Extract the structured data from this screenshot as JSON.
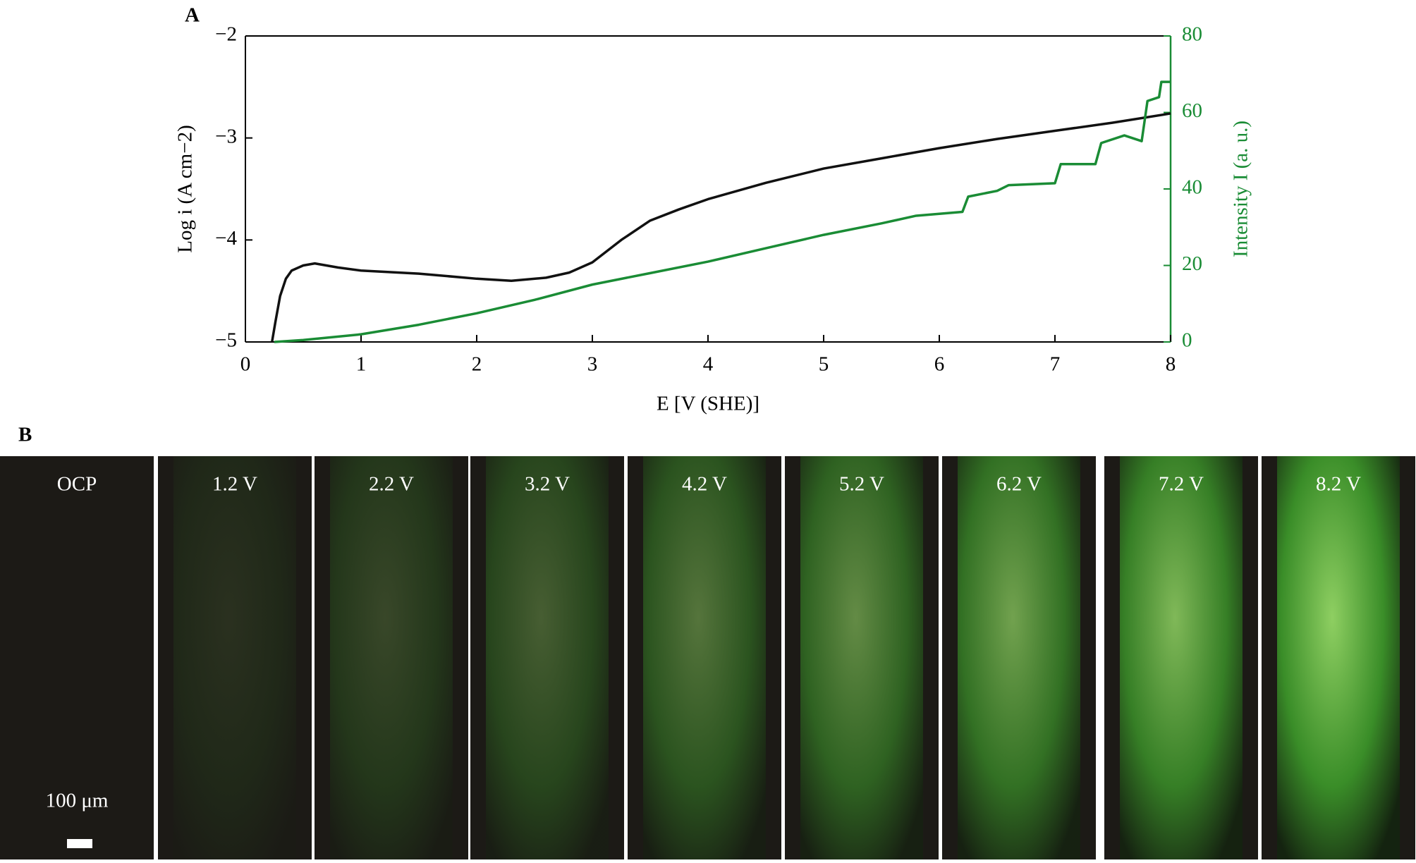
{
  "chart_data": {
    "type": "line",
    "panel_label": "A",
    "xlabel": "E [V (SHE)]",
    "ylabel": "Log i (A cm−2)",
    "y2label": "Intensity I (a. u.)",
    "xlim": [
      0,
      8
    ],
    "xticks": [
      0,
      1,
      2,
      3,
      4,
      5,
      6,
      7,
      8
    ],
    "ylim": [
      -5,
      -2
    ],
    "yticks": [
      {
        "value": -5,
        "label": "−5"
      },
      {
        "value": -4,
        "label": "−4"
      },
      {
        "value": -3,
        "label": "−3"
      },
      {
        "value": -2,
        "label": "−2"
      }
    ],
    "y2lim": [
      0,
      80
    ],
    "y2ticks": [
      0,
      20,
      40,
      60,
      80
    ],
    "y2color": "#1a8c35",
    "series": [
      {
        "color": "#111111",
        "x": [
          0.23,
          0.26,
          0.3,
          0.35,
          0.4,
          0.5,
          0.6,
          0.8,
          1.0,
          1.5,
          2.0,
          2.3,
          2.6,
          2.8,
          3.0,
          3.25,
          3.5,
          3.75,
          4.0,
          4.5,
          5.0,
          5.5,
          6.0,
          6.5,
          7.0,
          7.5,
          8.0
        ],
        "values": [
          -5.0,
          -4.8,
          -4.55,
          -4.38,
          -4.3,
          -4.25,
          -4.23,
          -4.27,
          -4.3,
          -4.33,
          -4.38,
          -4.4,
          -4.37,
          -4.32,
          -4.22,
          -4.0,
          -3.81,
          -3.7,
          -3.6,
          -3.44,
          -3.3,
          -3.2,
          -3.1,
          -3.01,
          -2.93,
          -2.85,
          -2.76
        ]
      },
      {
        "color": "#1a8c35",
        "axis": "y2",
        "x": [
          0.25,
          0.5,
          1.0,
          1.5,
          2.0,
          2.5,
          3.0,
          3.5,
          4.0,
          4.5,
          5.0,
          5.5,
          5.8,
          6.2,
          6.25,
          6.5,
          6.6,
          7.0,
          7.05,
          7.35,
          7.4,
          7.6,
          7.75,
          7.8,
          7.9,
          7.92,
          8.0
        ],
        "values": [
          0,
          0.5,
          2,
          4.5,
          7.5,
          11,
          15,
          18,
          21,
          24.5,
          28,
          31,
          33,
          34,
          38,
          39.5,
          41,
          41.5,
          46.5,
          46.5,
          52,
          54,
          52.5,
          63,
          64,
          68,
          68
        ]
      }
    ]
  },
  "panel_b": {
    "label": "B",
    "frames": [
      "OCP",
      "1.2 V",
      "2.2 V",
      "3.2 V",
      "4.2 V",
      "5.2 V",
      "6.2 V",
      "7.2 V",
      "8.2 V"
    ],
    "scale_bar": "100 μm"
  }
}
